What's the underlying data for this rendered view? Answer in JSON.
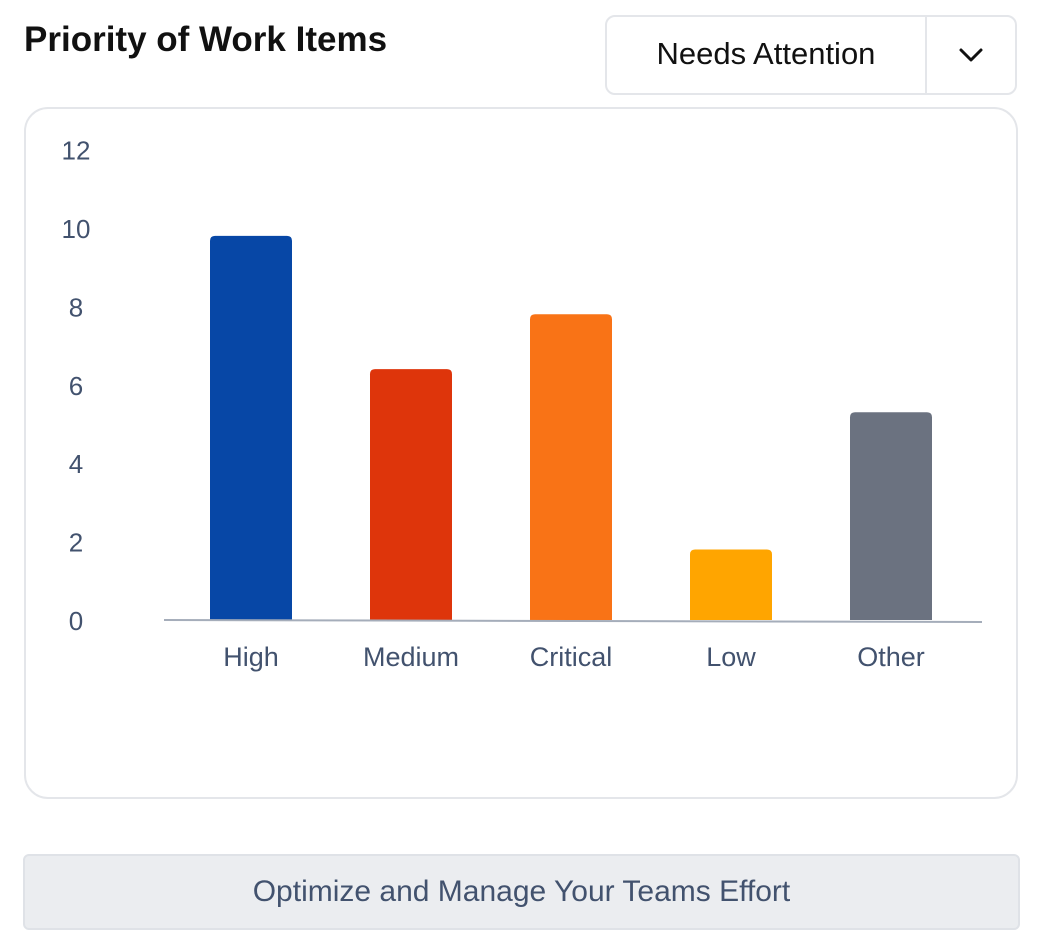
{
  "header": {
    "title": "Priority of Work Items"
  },
  "filter": {
    "selected": "Needs Attention",
    "toggle_icon": "chevron-down-icon"
  },
  "chart_data": {
    "type": "bar",
    "categories": [
      "High",
      "Medium",
      "Critical",
      "Low",
      "Other"
    ],
    "values": [
      9.8,
      6.4,
      7.8,
      1.8,
      5.3
    ],
    "colors": [
      "#0747a6",
      "#de350b",
      "#f97316",
      "#ffa500",
      "#6b7280"
    ],
    "ylim": [
      0,
      12
    ],
    "yticks": [
      0,
      2,
      4,
      6,
      8,
      10,
      12
    ],
    "grid": false,
    "legend": "none",
    "title": "",
    "xlabel": "",
    "ylabel": ""
  },
  "action": {
    "label": "Optimize and Manage Your Teams Effort"
  },
  "colors": {
    "axis": "#a5adba",
    "tick_text": "#42526e",
    "card_border": "#e4e6ea",
    "button_bg": "#ebedf0"
  }
}
